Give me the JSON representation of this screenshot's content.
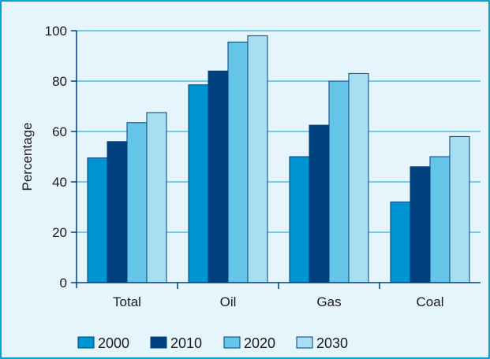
{
  "chart_data": {
    "type": "bar",
    "categories": [
      "Total",
      "Oil",
      "Gas",
      "Coal"
    ],
    "series": [
      {
        "name": "2000",
        "values": [
          49.5,
          78.5,
          50,
          32
        ],
        "color": "#0094d2"
      },
      {
        "name": "2010",
        "values": [
          56,
          84,
          62.5,
          46
        ],
        "color": "#003f7d"
      },
      {
        "name": "2020",
        "values": [
          63.5,
          95.5,
          80,
          50
        ],
        "color": "#66c6ea"
      },
      {
        "name": "2030",
        "values": [
          67.5,
          98,
          83,
          58
        ],
        "color": "#a9dff3"
      }
    ],
    "title": "",
    "xlabel": "",
    "ylabel": "Percentage",
    "ylim": [
      0,
      100
    ],
    "yticks": [
      0,
      20,
      40,
      60,
      80,
      100
    ],
    "grid": true,
    "legend": "bottom-left",
    "colors": {
      "background": "#e6f4fb",
      "border": "#00a3d6",
      "axis": "#003f7d",
      "gridline": "#00a3d6"
    }
  }
}
